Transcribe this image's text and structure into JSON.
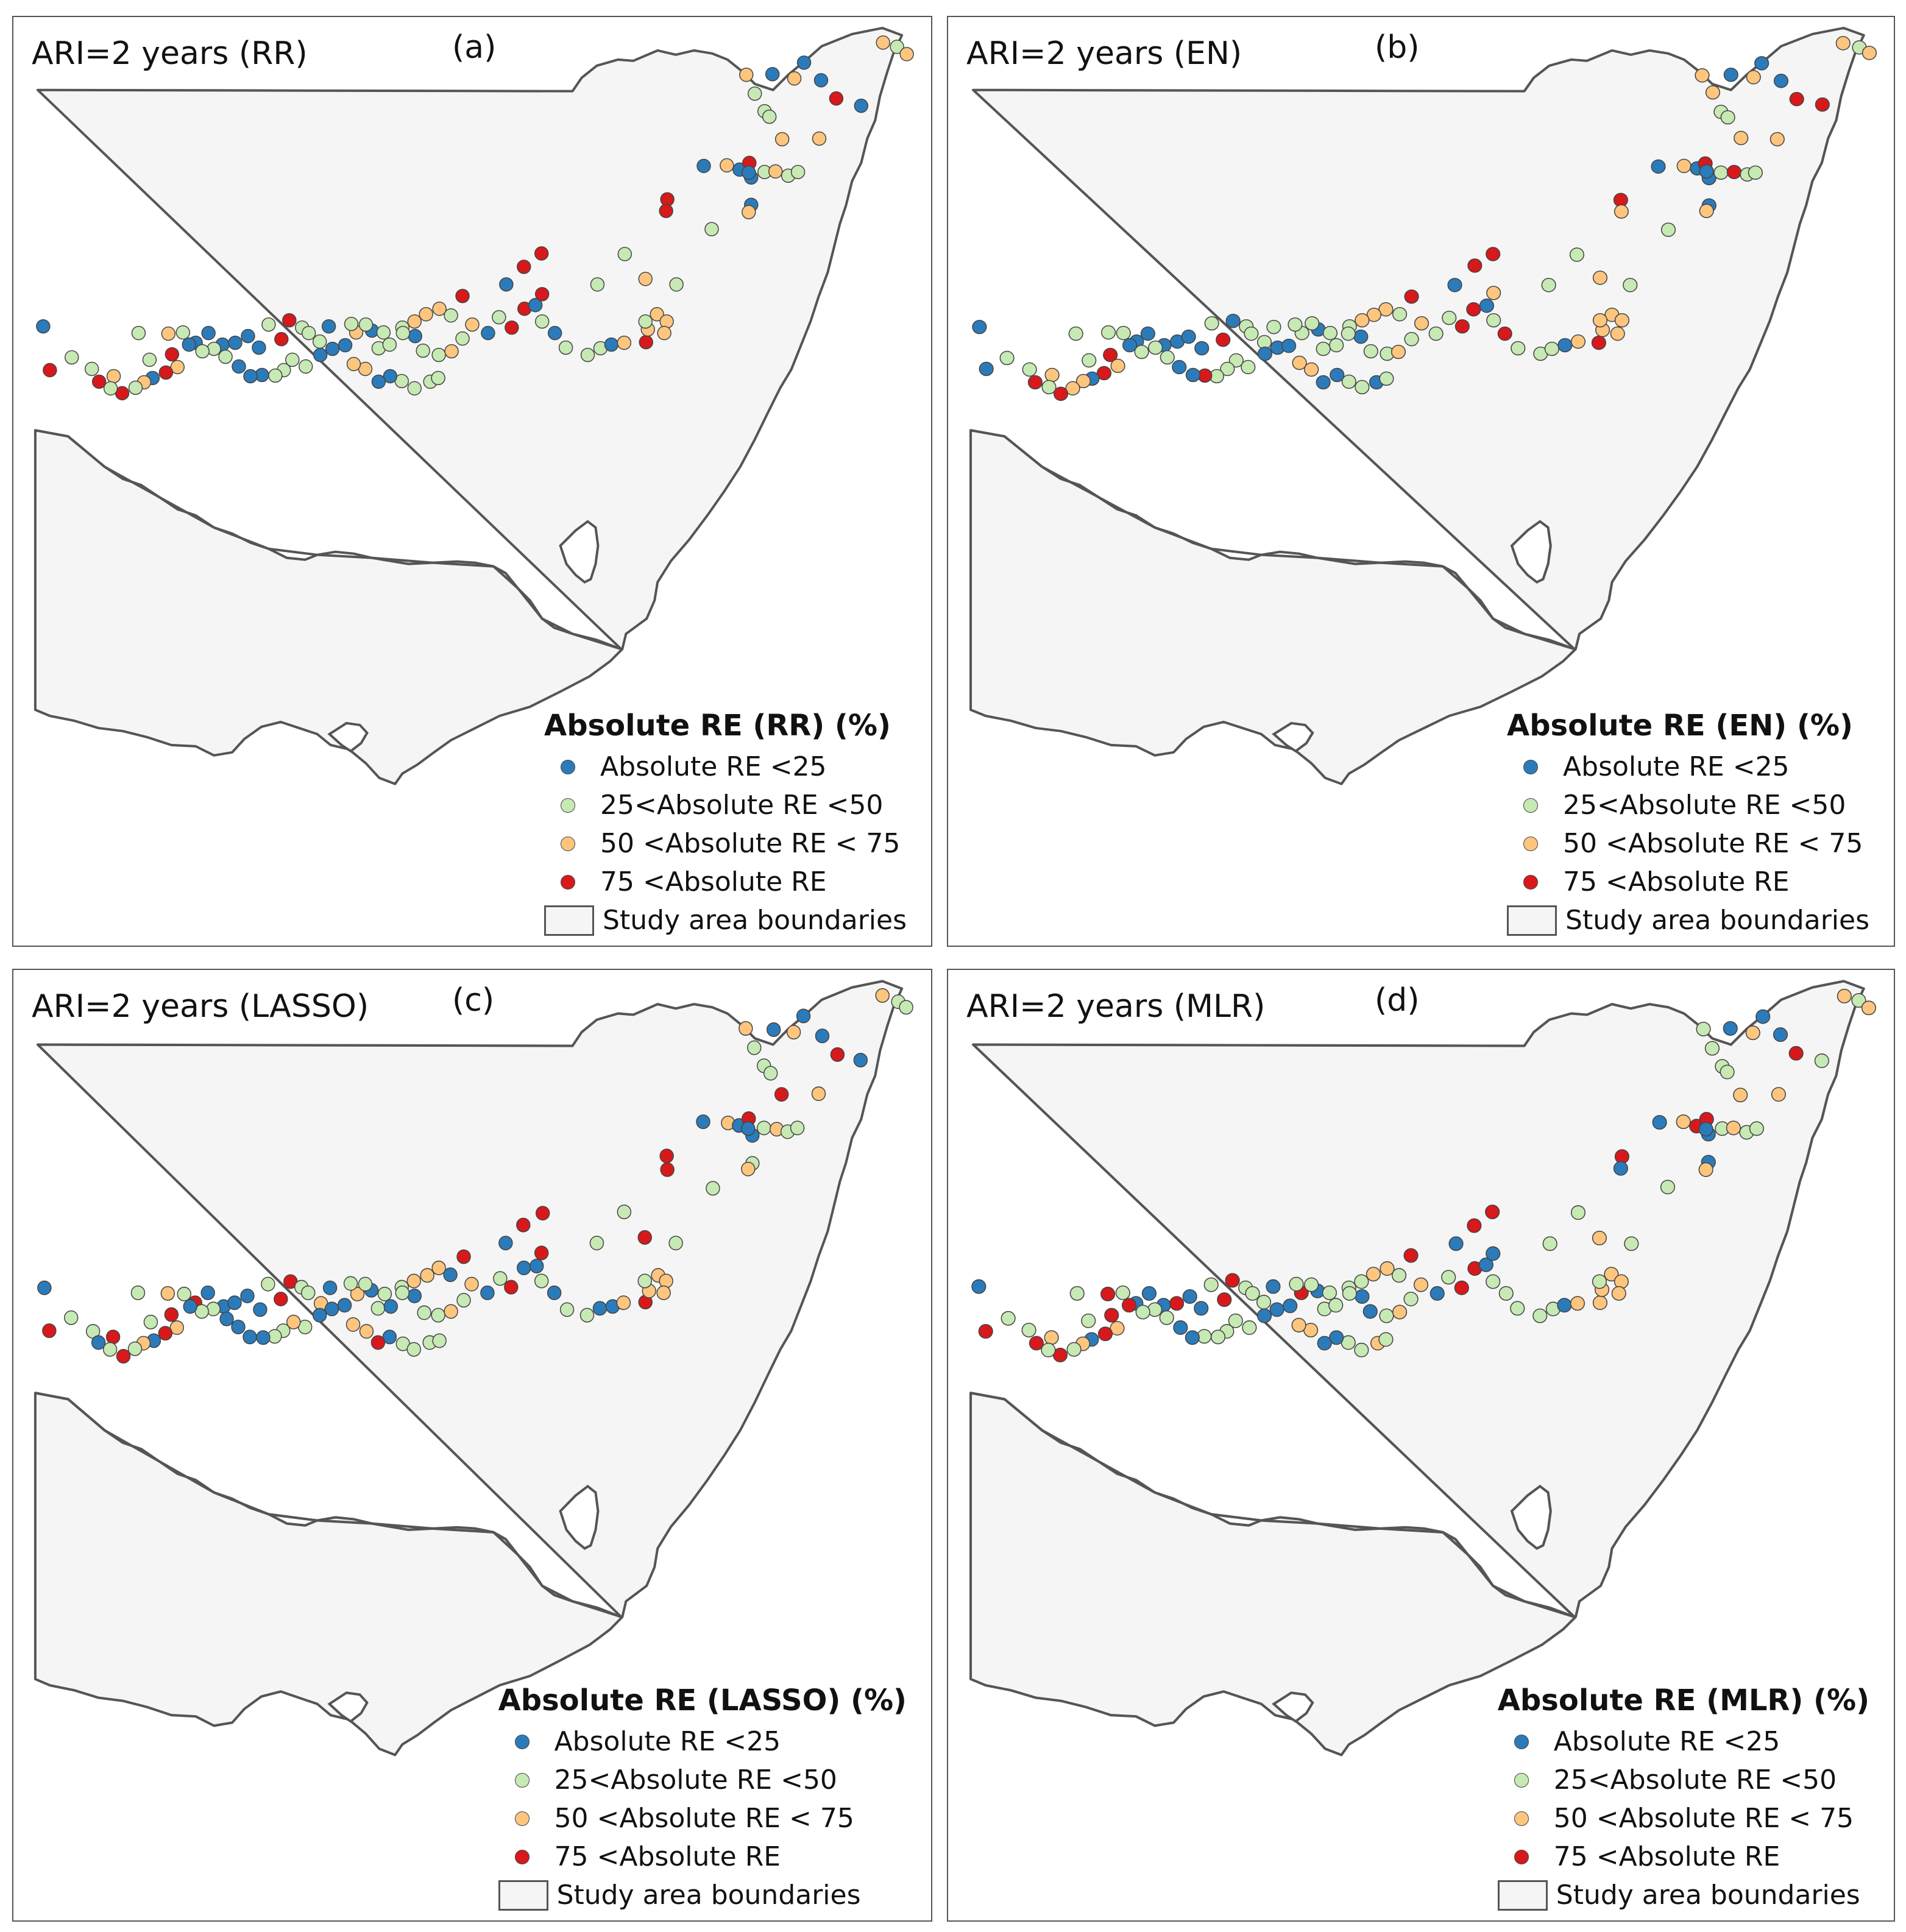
{
  "figure": {
    "panels": [
      {
        "title": "ARI=2 years (RR)",
        "label": "(a)",
        "legend_title": "Absolute RE (RR) (%)"
      },
      {
        "title": "ARI=2 years (EN)",
        "label": "(b)",
        "legend_title": "Absolute RE (EN) (%)"
      },
      {
        "title": "ARI=2 years (LASSO)",
        "label": "(c)",
        "legend_title": "Absolute RE (LASSO) (%)"
      },
      {
        "title": "ARI=2 years (MLR)",
        "label": "(d)",
        "legend_title": "Absolute RE (MLR) (%)"
      }
    ],
    "legend": {
      "classes": [
        {
          "label": "Absolute RE <25",
          "color": "#2b7bba"
        },
        {
          "label": "25<Absolute RE <50",
          "color": "#c7e9b4"
        },
        {
          "label": "50 <Absolute RE < 75",
          "color": "#fdc57e"
        },
        {
          "label": "75 <Absolute RE",
          "color": "#d7191c"
        }
      ],
      "boundary_label": "Study area boundaries"
    },
    "colors": {
      "boundary_fill": "#f5f5f5",
      "boundary_stroke": "#555555"
    }
  }
}
